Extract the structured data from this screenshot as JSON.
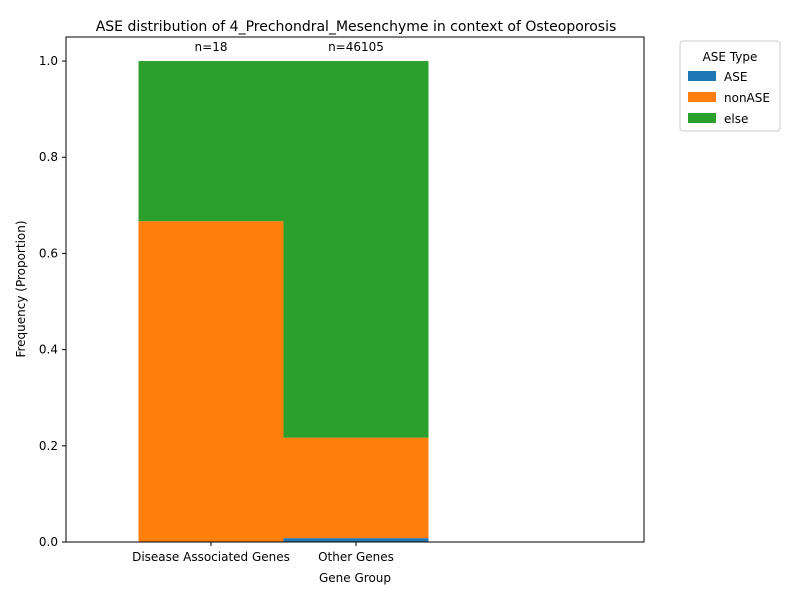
{
  "chart_data": {
    "type": "bar",
    "stacked": true,
    "title": "ASE distribution of 4_Prechondral_Mesenchyme in context of Osteoporosis",
    "xlabel": "Gene Group",
    "ylabel": "Frequency (Proportion)",
    "categories": [
      "Disease Associated Genes",
      "Other Genes"
    ],
    "counts": [
      "n=18",
      "n=46105"
    ],
    "ylim": [
      0,
      1.05
    ],
    "yticks": [
      "0.0",
      "0.2",
      "0.4",
      "0.6",
      "0.8",
      "1.0"
    ],
    "ytick_values": [
      0,
      0.2,
      0.4,
      0.6,
      0.8,
      1.0
    ],
    "grid": false,
    "legend": {
      "title": "ASE Type",
      "placement": "outside-top-right"
    },
    "series": [
      {
        "name": "ASE",
        "color": "#1f77b4",
        "values": [
          0.0,
          0.008
        ]
      },
      {
        "name": "nonASE",
        "color": "#ff7f0e",
        "values": [
          0.667,
          0.209
        ]
      },
      {
        "name": "else",
        "color": "#2ca02c",
        "values": [
          0.333,
          0.783
        ]
      }
    ]
  }
}
